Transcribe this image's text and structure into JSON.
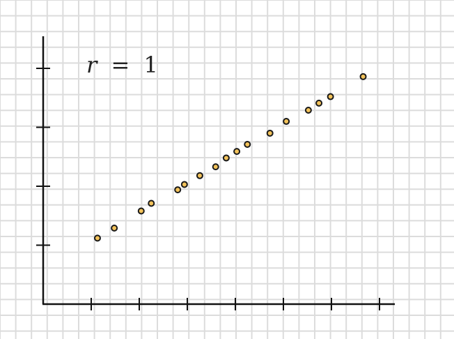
{
  "chart_data": {
    "type": "scatter",
    "title": "",
    "xlabel": "",
    "ylabel": "",
    "annotation": {
      "variable": "r",
      "equals": "=",
      "value": "1"
    },
    "xlim": [
      0,
      7
    ],
    "ylim": [
      0,
      4
    ],
    "x_ticks": [
      1,
      2,
      3,
      4,
      5,
      6,
      7
    ],
    "y_ticks": [
      1,
      2,
      3,
      4
    ],
    "grid": true,
    "legend": "none",
    "points": [
      {
        "x": 1.13,
        "y": 1.12
      },
      {
        "x": 1.48,
        "y": 1.29
      },
      {
        "x": 2.04,
        "y": 1.58
      },
      {
        "x": 2.25,
        "y": 1.71
      },
      {
        "x": 2.8,
        "y": 1.94
      },
      {
        "x": 2.94,
        "y": 2.03
      },
      {
        "x": 3.26,
        "y": 2.18
      },
      {
        "x": 3.59,
        "y": 2.33
      },
      {
        "x": 3.81,
        "y": 2.48
      },
      {
        "x": 4.03,
        "y": 2.59
      },
      {
        "x": 4.25,
        "y": 2.71
      },
      {
        "x": 4.72,
        "y": 2.9
      },
      {
        "x": 5.06,
        "y": 3.1
      },
      {
        "x": 5.52,
        "y": 3.29
      },
      {
        "x": 5.74,
        "y": 3.41
      },
      {
        "x": 5.98,
        "y": 3.52
      },
      {
        "x": 6.66,
        "y": 3.86
      }
    ]
  },
  "colors": {
    "background": "#ffffff",
    "grid": "#dcdcdc",
    "axis": "#111111",
    "point_fill": "#f2c25a",
    "point_stroke": "#1a1a1a"
  }
}
